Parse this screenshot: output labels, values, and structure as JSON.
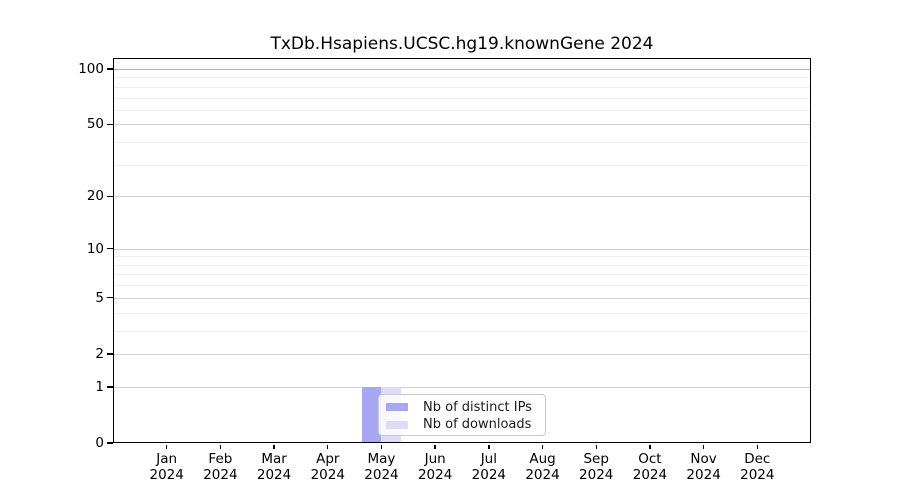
{
  "chart_data": {
    "type": "bar",
    "title": "TxDb.Hsapiens.UCSC.hg19.knownGene 2024",
    "x": {
      "months": [
        "Jan",
        "Feb",
        "Mar",
        "Apr",
        "May",
        "Jun",
        "Jul",
        "Aug",
        "Sep",
        "Oct",
        "Nov",
        "Dec"
      ],
      "year": "2024"
    },
    "series": [
      {
        "name": "Nb of distinct IPs",
        "color": "#a7a7f3",
        "values": [
          0,
          0,
          0,
          0,
          1,
          0,
          0,
          0,
          0,
          0,
          0,
          0
        ]
      },
      {
        "name": "Nb of downloads",
        "color": "#dcdcf8",
        "values": [
          0,
          0,
          0,
          0,
          1,
          0,
          0,
          0,
          0,
          0,
          0,
          0
        ]
      }
    ],
    "y_axis": {
      "scale": "log1p",
      "ticks": [
        0,
        1,
        2,
        5,
        10,
        20,
        50,
        100
      ],
      "minor_ticks": [
        3,
        4,
        6,
        7,
        8,
        9,
        30,
        40,
        60,
        70,
        80,
        90
      ],
      "ylim": [
        0,
        115
      ]
    },
    "legend_position": "center",
    "grid": "on"
  },
  "colors": {
    "grid_major": "#d2d2d2",
    "grid_top": "#b3b3b3",
    "grid_minor": "#ededed",
    "frame": "#000000",
    "legend_border": "#c9c9c9",
    "background": "#ffffff"
  }
}
